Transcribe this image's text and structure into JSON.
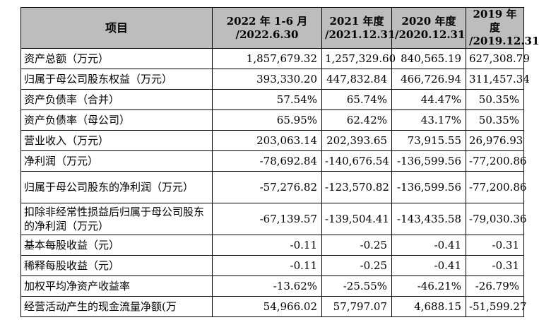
{
  "table": {
    "headers": [
      {
        "line1": "项目",
        "line2": ""
      },
      {
        "line1": "2022 年 1-6 月",
        "line2": "/2022.6.30"
      },
      {
        "line1": "2021 年度",
        "line2": "/2021.12.31"
      },
      {
        "line1": "2020 年度",
        "line2": "/2020.12.31"
      },
      {
        "line1": "2019 年度",
        "line2": "/2019.12.31"
      }
    ],
    "rows": [
      {
        "label": "资产总额（万元）",
        "v1": "1,857,679.32",
        "v2": "1,257,329.60",
        "v3": "840,565.19",
        "v4": "627,308.79"
      },
      {
        "label": "归属于母公司股东权益（万元）",
        "v1": "393,330.20",
        "v2": "447,832.84",
        "v3": "466,726.94",
        "v4": "311,457.34"
      },
      {
        "label": "资产负债率（合并）",
        "v1": "57.54%",
        "v2": "65.74%",
        "v3": "44.47%",
        "v4": "50.35%"
      },
      {
        "label": "资产负债率（母公司）",
        "v1": "65.95%",
        "v2": "62.42%",
        "v3": "43.17%",
        "v4": "50.35%"
      },
      {
        "label": "营业收入（万元）",
        "v1": "203,063.14",
        "v2": "202,393.65",
        "v3": "73,915.55",
        "v4": "26,976.93"
      },
      {
        "label": "净利润（万元）",
        "v1": "-78,692.84",
        "v2": "-140,676.54",
        "v3": "-136,599.56",
        "v4": "-77,200.86"
      },
      {
        "label": "归属于母公司股东的净利润（万元）",
        "v1": "-57,276.82",
        "v2": "-123,570.82",
        "v3": "-136,599.56",
        "v4": "-77,200.86"
      },
      {
        "label": "扣除非经常性损益后归属于母公司股东的净利润（万元）",
        "v1": "-67,139.57",
        "v2": "-139,504.41",
        "v3": "-143,435.58",
        "v4": "-79,030.36"
      },
      {
        "label": "基本每股收益（元）",
        "v1": "-0.11",
        "v2": "-0.25",
        "v3": "-0.41",
        "v4": "-0.31"
      },
      {
        "label": "稀释每股收益（元）",
        "v1": "-0.11",
        "v2": "-0.25",
        "v3": "-0.41",
        "v4": "-0.31"
      },
      {
        "label": "加权平均净资产收益率",
        "v1": "-13.62%",
        "v2": "-25.55%",
        "v3": "-46.21%",
        "v4": "-26.79%"
      },
      {
        "label": "经营活动产生的现金流量净额(万",
        "v1": "54,966.02",
        "v2": "57,797.07",
        "v3": "4,688.15",
        "v4": "-51,599.27"
      }
    ]
  }
}
